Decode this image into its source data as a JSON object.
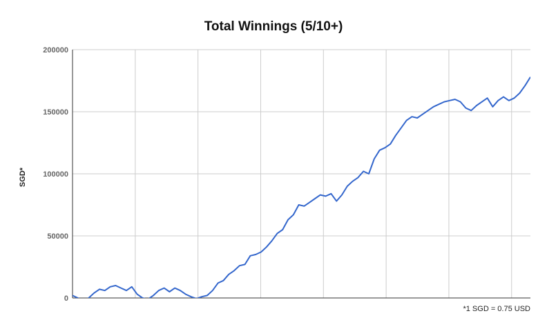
{
  "chart_data": {
    "type": "line",
    "title": "Total Winnings (5/10+)",
    "xlabel": "",
    "ylabel": "SGD*",
    "footnote": "*1 SGD = 0.75 USD",
    "ylim": [
      0,
      200000
    ],
    "yticks": [
      "0",
      "50000",
      "100000",
      "150000",
      "200000"
    ],
    "grid": true,
    "legend": "none",
    "line_color": "#3366cc",
    "grid_color": "#cccccc",
    "series": [
      {
        "values": [
          2000,
          0,
          -3000,
          0,
          4000,
          7000,
          6000,
          9000,
          10000,
          8000,
          6000,
          9000,
          3000,
          0,
          -1000,
          2000,
          6000,
          8000,
          5000,
          8000,
          6000,
          3000,
          1000,
          -500,
          1000,
          2000,
          6000,
          12000,
          14000,
          19000,
          22000,
          26000,
          27000,
          34000,
          35000,
          37000,
          41000,
          46000,
          52000,
          55000,
          63000,
          67000,
          75000,
          74000,
          77000,
          80000,
          83000,
          82000,
          84000,
          78000,
          83000,
          90000,
          94000,
          97000,
          102000,
          100000,
          112000,
          119000,
          121000,
          124000,
          131000,
          137000,
          143000,
          146000,
          145000,
          148000,
          151000,
          154000,
          156000,
          158000,
          159000,
          160000,
          158000,
          153000,
          151000,
          155000,
          158000,
          161000,
          154000,
          159000,
          162000,
          159000,
          161000,
          165000,
          171000,
          178000
        ]
      }
    ]
  }
}
